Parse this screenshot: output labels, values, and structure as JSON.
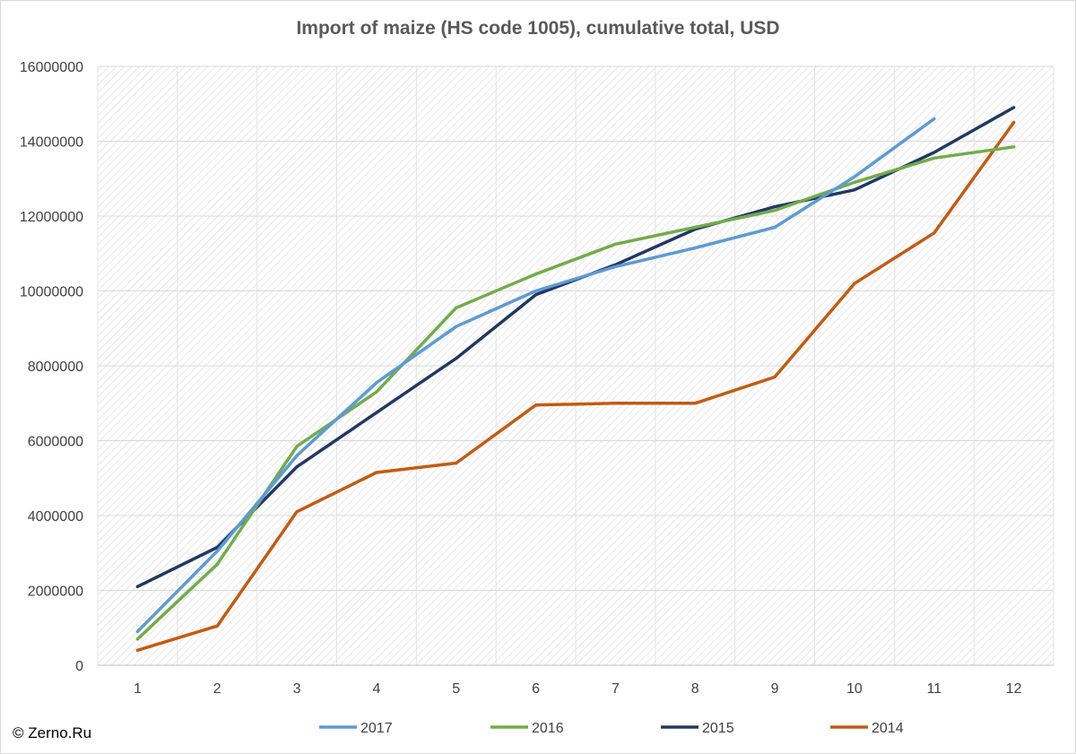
{
  "chart_data": {
    "type": "line",
    "title": "Import of maize (HS code 1005), cumulative total, USD",
    "xlabel": "",
    "ylabel": "",
    "x": [
      1,
      2,
      3,
      4,
      5,
      6,
      7,
      8,
      9,
      10,
      11,
      12
    ],
    "ylim": [
      0,
      16000000
    ],
    "yticks": [
      0,
      2000000,
      4000000,
      6000000,
      8000000,
      10000000,
      12000000,
      14000000,
      16000000
    ],
    "grid": true,
    "legend_position": "bottom",
    "series": [
      {
        "name": "2017",
        "color": "#5b9bd5",
        "values": [
          900000,
          3050000,
          5600000,
          7550000,
          9050000,
          10000000,
          10650000,
          11150000,
          11700000,
          13050000,
          14600000,
          null
        ]
      },
      {
        "name": "2016",
        "color": "#70ad47",
        "values": [
          700000,
          2700000,
          5850000,
          7300000,
          9550000,
          10450000,
          11250000,
          11700000,
          12150000,
          12900000,
          13550000,
          13850000
        ]
      },
      {
        "name": "2015",
        "color": "#203864",
        "values": [
          2100000,
          3150000,
          5300000,
          6750000,
          8200000,
          9900000,
          10700000,
          11650000,
          12250000,
          12700000,
          13700000,
          14900000
        ]
      },
      {
        "name": "2014",
        "color": "#c55a11",
        "values": [
          400000,
          1050000,
          4100000,
          5150000,
          5400000,
          6950000,
          7000000,
          7000000,
          7700000,
          10200000,
          11550000,
          14500000
        ]
      }
    ]
  },
  "credit": "© Zerno.Ru"
}
